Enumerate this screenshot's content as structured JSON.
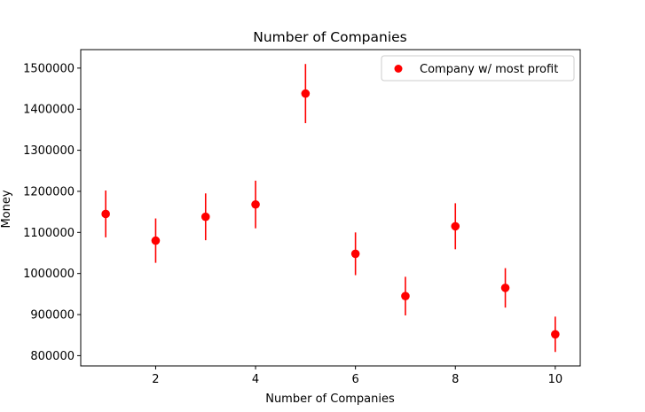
{
  "chart_data": {
    "type": "scatter",
    "title": "Number of Companies",
    "xlabel": "Number of Companies",
    "ylabel": "Money",
    "xlim": [
      0.5,
      10.5
    ],
    "ylim": [
      775000,
      1545000
    ],
    "xticks": [
      2,
      4,
      6,
      8,
      10
    ],
    "yticks": [
      800000,
      900000,
      1000000,
      1100000,
      1200000,
      1300000,
      1400000,
      1500000
    ],
    "grid": false,
    "legend_position": "top-right",
    "series": [
      {
        "name": "Company w/ most profit",
        "color": "#ff0000",
        "x": [
          1,
          2,
          3,
          4,
          5,
          6,
          7,
          8,
          9,
          10
        ],
        "y": [
          1145000,
          1080000,
          1138000,
          1168000,
          1438000,
          1048000,
          945000,
          1115000,
          965000,
          852000
        ],
        "yerr": [
          57000,
          54000,
          57000,
          58000,
          72000,
          52000,
          47000,
          56000,
          48000,
          43000
        ]
      }
    ]
  }
}
